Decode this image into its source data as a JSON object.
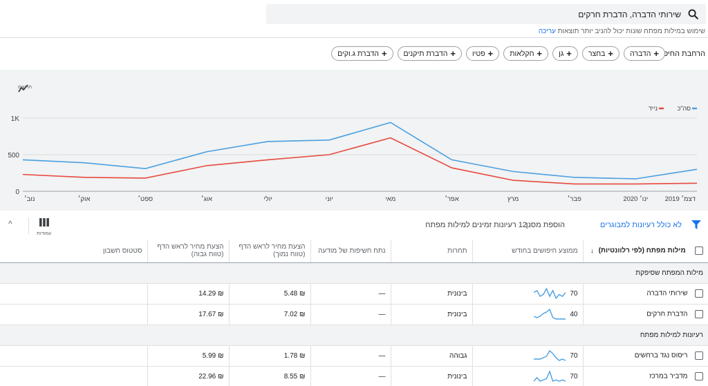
{
  "search": {
    "query": "שירותי הדברה, הדברת חרקים"
  },
  "hint": {
    "text": "שימוש במילות מפתח שונות יכול להניב יותר תוצאות",
    "edit": "עריכה"
  },
  "broaden": {
    "label": "הרחבת החיפוש:",
    "chips": [
      "הדברה",
      "בחצר",
      "גן",
      "חקלאות",
      "פטיו",
      "הדברת תיקנים",
      "הדברת ג.וקים"
    ]
  },
  "trend_button": {
    "label": "תרשים"
  },
  "chart_data": {
    "type": "line",
    "x": [
      "דצמ׳ 2019",
      "ינו׳ 2020",
      "פבר׳",
      "מרץ",
      "אפר׳",
      "מאי",
      "יוני",
      "יולי",
      "אוג׳",
      "ספט׳",
      "אוק׳",
      "נוב׳"
    ],
    "series": [
      {
        "name": "סה\"כ",
        "color": "#4a9fe0",
        "values": [
          300,
          170,
          190,
          270,
          430,
          940,
          700,
          680,
          540,
          310,
          390,
          430
        ]
      },
      {
        "name": "נייד",
        "color": "#e8483d",
        "values": [
          110,
          100,
          100,
          150,
          320,
          730,
          500,
          430,
          350,
          180,
          190,
          230
        ]
      }
    ],
    "yticks": [
      "0",
      "500",
      "1K"
    ],
    "ylim": [
      0,
      1000
    ],
    "legend": "top-right"
  },
  "toolbar": {
    "exclude_adult": "לא כולל רעיונות למבוגרים",
    "add_filter": "הוספת מסנן",
    "count": "12 רעיונות זמינים למילות מפתח",
    "columns_label": "עמודות",
    "collapse": "^"
  },
  "table": {
    "headers": {
      "keyword": "מילות מפתח (לפי רלוונטיות)",
      "avg_searches": "ממוצע חיפושים בחודש",
      "competition": "תחרות",
      "impression_share": "נתח חשיפות של מודעה",
      "bid_low": "הצעת מחיר לראש הדף (טווח נמוך)",
      "bid_high": "הצעת מחיר לראש הדף (טווח גבוה)",
      "account_status": "סטטוס חשבון"
    },
    "groups": [
      {
        "title": "מילות המפתח שסיפקת",
        "rows": [
          {
            "keyword": "שירותי הדברה",
            "avg": "70",
            "trend": [
              5,
              3,
              4,
              2,
              6,
              3,
              7,
              4,
              3,
              6,
              5
            ],
            "competition": "בינונית",
            "share": "—",
            "low": "₪ 5.48",
            "high": "₪ 14.29"
          },
          {
            "keyword": "הדברת חרקים",
            "avg": "40",
            "trend": [
              1,
              1,
              1,
              1,
              2,
              8,
              6,
              5,
              3,
              2,
              3
            ],
            "competition": "בינונית",
            "share": "—",
            "low": "₪ 7.02",
            "high": "₪ 17.67"
          }
        ]
      },
      {
        "title": "רעיונות למילות מפתח",
        "rows": [
          {
            "keyword": "ריסוס נגד ברחשים",
            "avg": "70",
            "trend": [
              2,
              3,
              2,
              4,
              7,
              9,
              5,
              4,
              3,
              3,
              3
            ],
            "competition": "גבוהה",
            "share": "—",
            "low": "₪ 1.78",
            "high": "₪ 5.99"
          },
          {
            "keyword": "מדביר במרכז",
            "avg": "70",
            "trend": [
              1,
              2,
              1,
              2,
              1,
              9,
              3,
              2,
              1,
              4,
              1
            ],
            "competition": "בינונית",
            "share": "—",
            "low": "₪ 8.55",
            "high": "₪ 22.96"
          }
        ]
      }
    ]
  }
}
